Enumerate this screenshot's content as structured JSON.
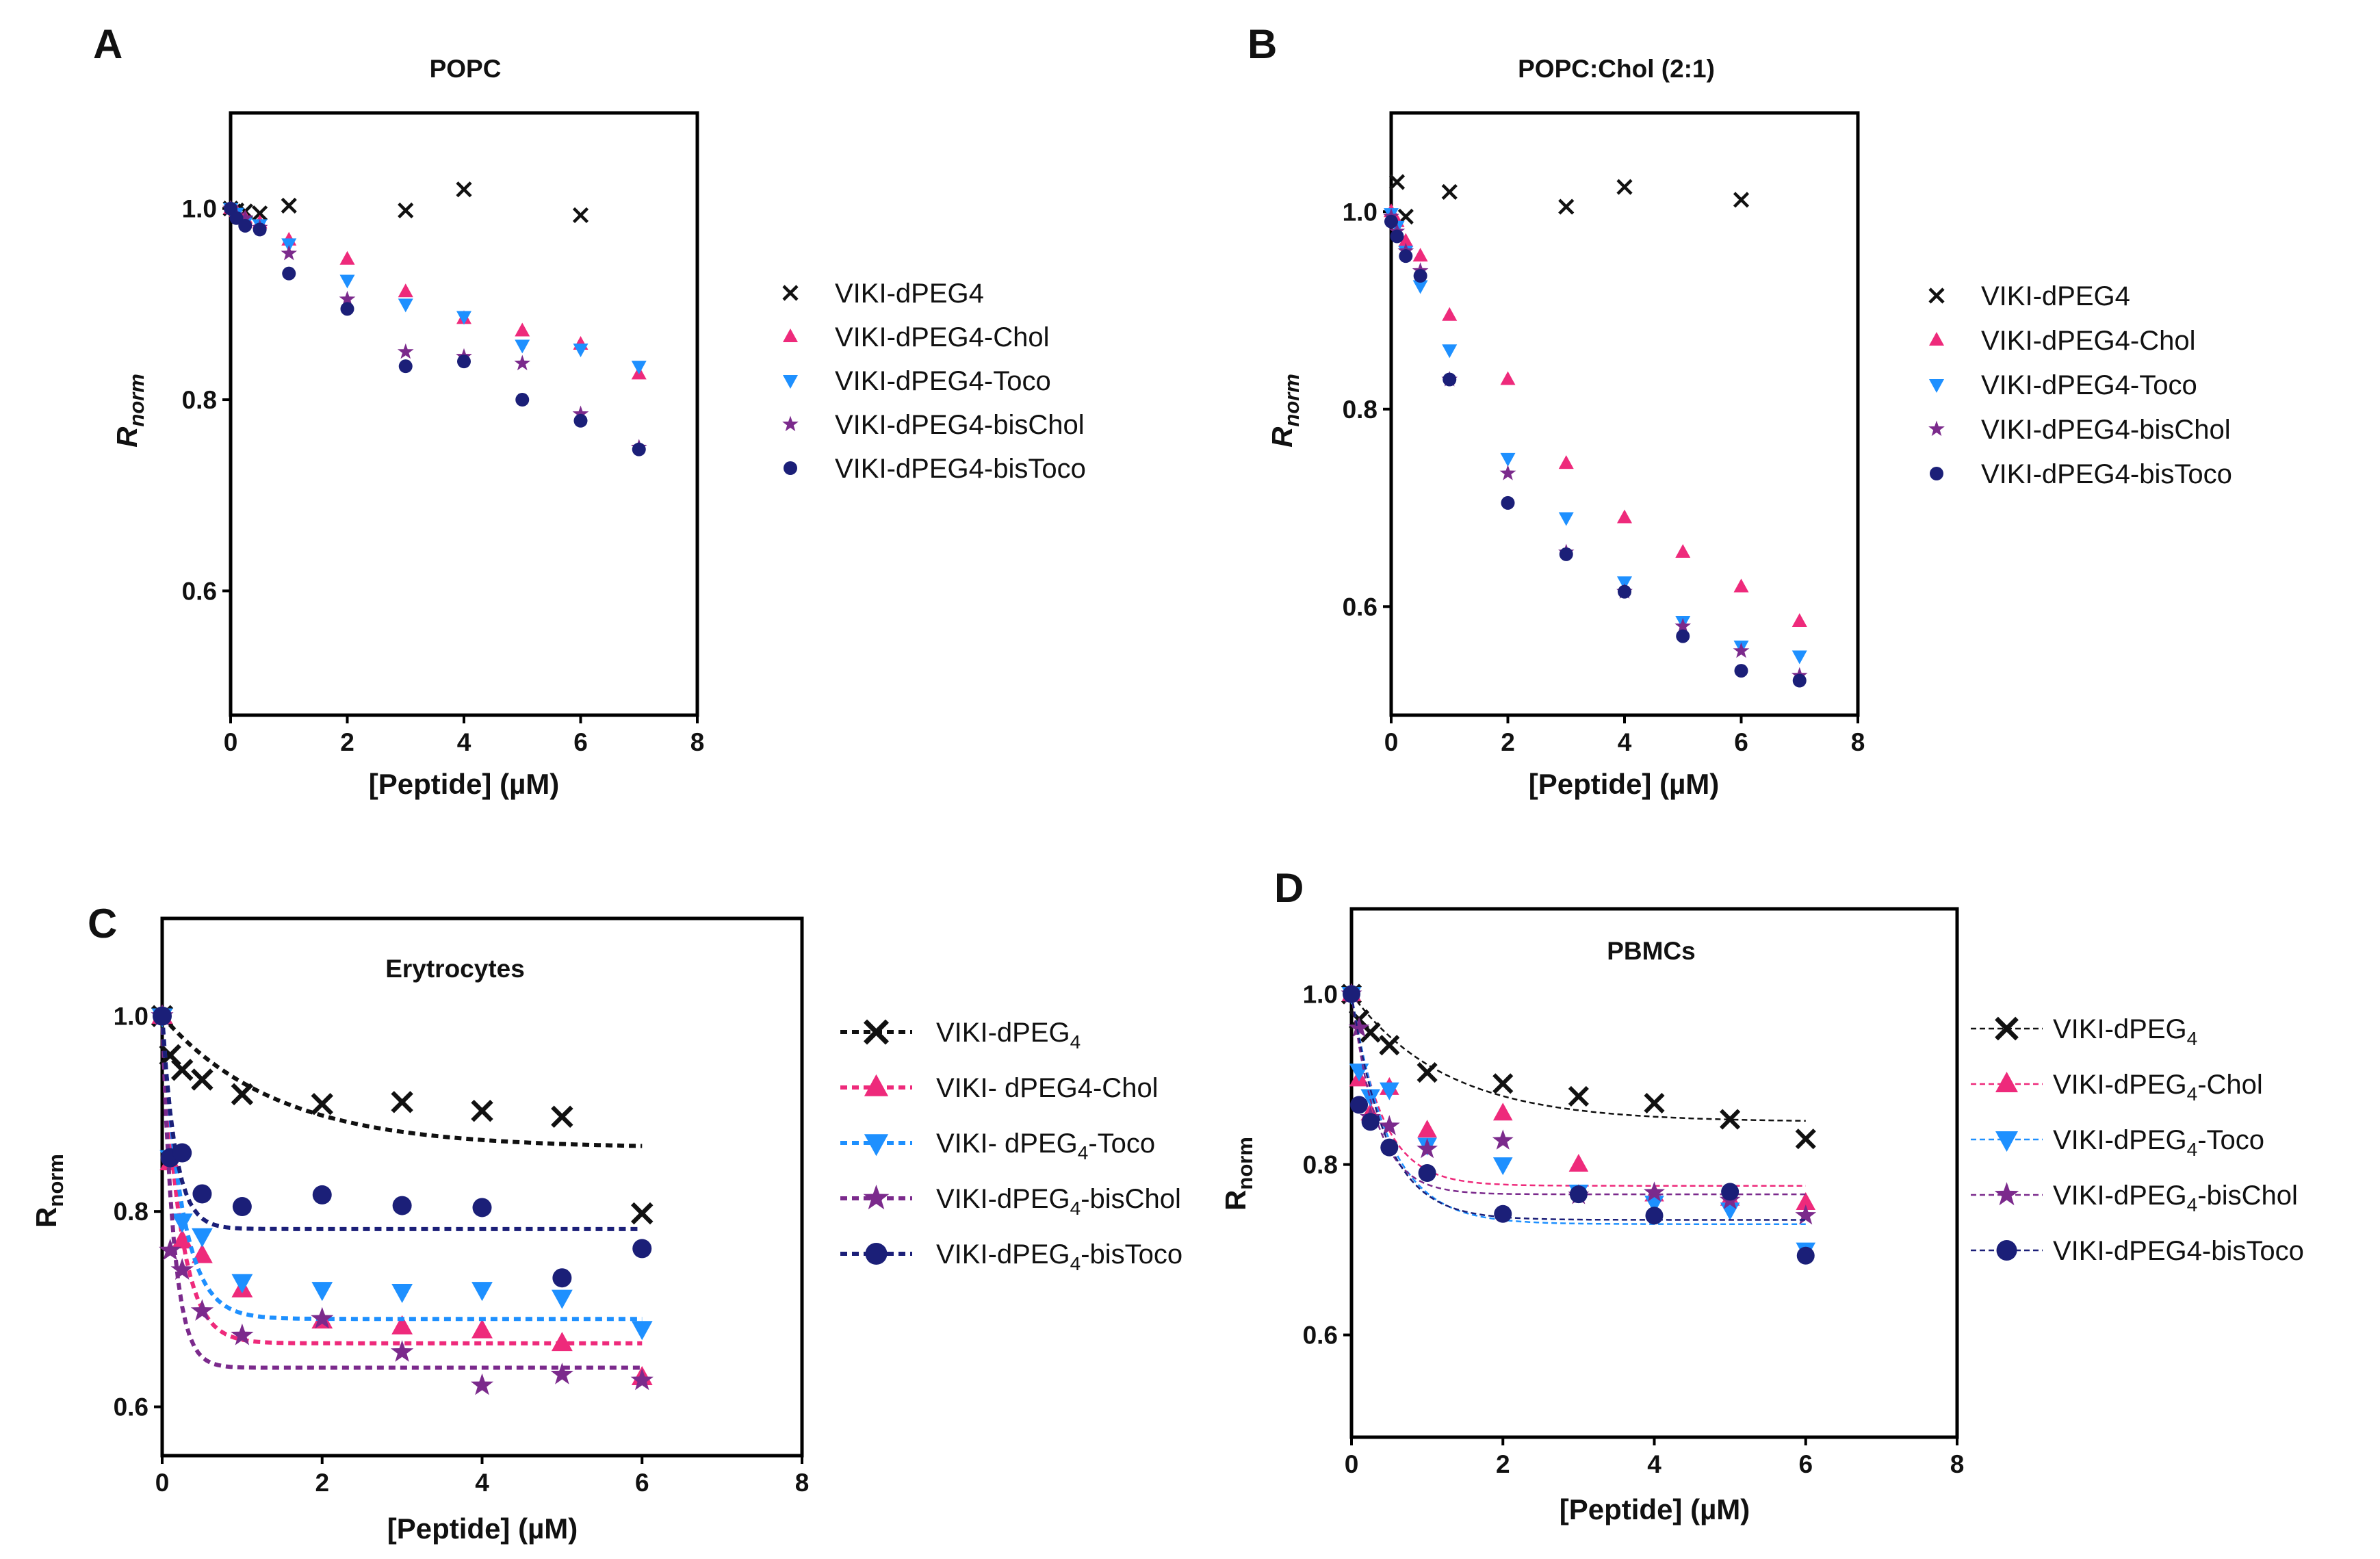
{
  "panels": [
    {
      "label": "A",
      "title": "POPC",
      "xlabel": "[Peptide] (µM)",
      "ylabel_main": "R",
      "ylabel_sub": "norm",
      "ylabel_italic": true,
      "xlim": [
        0,
        8
      ],
      "ylim": [
        0.47,
        1.1
      ],
      "xticks": [
        "0",
        "2",
        "4",
        "6",
        "8"
      ],
      "yticks": [
        "0.6",
        "0.8",
        "1.0"
      ],
      "series": [
        {
          "name": "VIKI-dPEG4",
          "marker": "x",
          "color": "#111111",
          "x": [
            0,
            0.1,
            0.25,
            0.5,
            1,
            3,
            4,
            6
          ],
          "y": [
            1.0,
            0.998,
            0.997,
            0.995,
            1.003,
            0.998,
            1.02,
            0.993
          ]
        },
        {
          "name": "VIKI-dPEG4-Chol",
          "marker": "triangle-up",
          "color": "#ee2a7b",
          "x": [
            0,
            0.1,
            0.25,
            0.5,
            1,
            2,
            3,
            4,
            5,
            6,
            7
          ],
          "y": [
            1.0,
            0.997,
            0.99,
            0.985,
            0.967,
            0.947,
            0.913,
            0.885,
            0.872,
            0.858,
            0.827
          ]
        },
        {
          "name": "VIKI-dPEG4-Toco",
          "marker": "triangle-down",
          "color": "#1e90ff",
          "x": [
            0,
            0.1,
            0.25,
            0.5,
            1,
            2,
            3,
            4,
            5,
            6,
            7
          ],
          "y": [
            1.0,
            0.995,
            0.985,
            0.983,
            0.963,
            0.925,
            0.9,
            0.887,
            0.857,
            0.853,
            0.835
          ]
        },
        {
          "name": "VIKI-dPEG4-bisChol",
          "marker": "star",
          "color": "#7b2a8c",
          "x": [
            0,
            0.1,
            0.25,
            0.5,
            1,
            2,
            3,
            4,
            5,
            6,
            7
          ],
          "y": [
            1.0,
            0.993,
            0.99,
            0.98,
            0.953,
            0.905,
            0.85,
            0.845,
            0.838,
            0.785,
            0.75
          ]
        },
        {
          "name": "VIKI-dPEG4-bisToco",
          "marker": "circle",
          "color": "#1b1f78",
          "x": [
            0,
            0.1,
            0.25,
            0.5,
            1,
            2,
            3,
            4,
            5,
            6,
            7
          ],
          "y": [
            1.0,
            0.99,
            0.982,
            0.978,
            0.932,
            0.895,
            0.835,
            0.84,
            0.8,
            0.778,
            0.748
          ]
        }
      ],
      "legend": [
        "VIKI-dPEG4",
        "VIKI-dPEG4-Chol",
        "VIKI-dPEG4-Toco",
        "VIKI-dPEG4-bisChol",
        "VIKI-dPEG4-bisToco"
      ]
    },
    {
      "label": "B",
      "title": "POPC:Chol (2:1)",
      "xlabel": "[Peptide] (µM)",
      "ylabel_main": "R",
      "ylabel_sub": "norm",
      "ylabel_italic": true,
      "xlim": [
        0,
        8
      ],
      "ylim": [
        0.49,
        1.1
      ],
      "xticks": [
        "0",
        "2",
        "4",
        "6",
        "8"
      ],
      "yticks": [
        "0.6",
        "0.8",
        "1.0"
      ],
      "series": [
        {
          "name": "VIKI-dPEG4",
          "marker": "x",
          "color": "#111111",
          "x": [
            0.1,
            0.25,
            1,
            3,
            4,
            6
          ],
          "y": [
            1.03,
            0.995,
            1.02,
            1.005,
            1.025,
            1.012
          ]
        },
        {
          "name": "VIKI-dPEG4-Chol",
          "marker": "triangle-up",
          "color": "#ee2a7b",
          "x": [
            0,
            0.1,
            0.25,
            0.5,
            1,
            2,
            3,
            4,
            5,
            6,
            7
          ],
          "y": [
            1.0,
            0.99,
            0.97,
            0.955,
            0.895,
            0.83,
            0.745,
            0.69,
            0.655,
            0.62,
            0.585
          ]
        },
        {
          "name": "VIKI-dPEG4-Toco",
          "marker": "triangle-down",
          "color": "#1e90ff",
          "x": [
            0,
            0.1,
            0.25,
            0.5,
            1,
            2,
            3,
            4,
            5,
            6,
            7
          ],
          "y": [
            0.998,
            0.985,
            0.96,
            0.925,
            0.86,
            0.75,
            0.69,
            0.625,
            0.585,
            0.56,
            0.55
          ]
        },
        {
          "name": "VIKI-dPEG4-bisChol",
          "marker": "star",
          "color": "#7b2a8c",
          "x": [
            0,
            0.1,
            0.25,
            0.5,
            1,
            2,
            3,
            4,
            5,
            6,
            7
          ],
          "y": [
            0.995,
            0.98,
            0.96,
            0.94,
            0.83,
            0.735,
            0.655,
            0.615,
            0.58,
            0.555,
            0.53
          ]
        },
        {
          "name": "VIKI-dPEG4-bisToco",
          "marker": "circle",
          "color": "#1b1f78",
          "x": [
            0,
            0.1,
            0.25,
            0.5,
            1,
            2,
            3,
            4,
            5,
            6,
            7
          ],
          "y": [
            0.99,
            0.975,
            0.955,
            0.935,
            0.83,
            0.705,
            0.653,
            0.615,
            0.57,
            0.535,
            0.525
          ]
        }
      ],
      "legend": [
        "VIKI-dPEG4",
        "VIKI-dPEG4-Chol",
        "VIKI-dPEG4-Toco",
        "VIKI-dPEG4-bisChol",
        "VIKI-dPEG4-bisToco"
      ]
    },
    {
      "label": "C",
      "title": "Erytrocytes",
      "xlabel": "[Peptide] (µM)",
      "ylabel_main": "R",
      "ylabel_sub": "norm",
      "ylabel_italic": false,
      "xlim": [
        0,
        8
      ],
      "ylim": [
        0.55,
        1.1
      ],
      "xticks": [
        "0",
        "2",
        "4",
        "6",
        "8"
      ],
      "yticks": [
        "0.6",
        "0.8",
        "1.0"
      ],
      "series": [
        {
          "name": "VIKI-dPEG4",
          "marker": "x",
          "color": "#111111",
          "x": [
            0,
            0.1,
            0.25,
            0.5,
            1,
            2,
            3,
            4,
            5,
            6
          ],
          "y": [
            1.0,
            0.96,
            0.945,
            0.935,
            0.92,
            0.91,
            0.912,
            0.903,
            0.897,
            0.798
          ],
          "fit": {
            "y0": 1.0,
            "plateau": 0.865,
            "k": 0.7
          }
        },
        {
          "name": "VIKI- dPEG4-Chol",
          "marker": "triangle-up",
          "color": "#ee2a7b",
          "x": [
            0,
            0.1,
            0.25,
            0.5,
            1,
            2,
            3,
            4,
            5,
            6
          ],
          "y": [
            1.0,
            0.85,
            0.77,
            0.755,
            0.72,
            0.688,
            0.682,
            0.678,
            0.665,
            0.63
          ],
          "fit": {
            "y0": 1.0,
            "plateau": 0.665,
            "k": 4.5
          }
        },
        {
          "name": "VIKI- dPEG4-Toco",
          "marker": "triangle-down",
          "color": "#1e90ff",
          "x": [
            0,
            0.1,
            0.25,
            0.5,
            1,
            2,
            3,
            4,
            5,
            6
          ],
          "y": [
            1.0,
            0.855,
            0.79,
            0.775,
            0.728,
            0.72,
            0.718,
            0.72,
            0.712,
            0.68
          ],
          "fit": {
            "y0": 1.0,
            "plateau": 0.69,
            "k": 4.0
          }
        },
        {
          "name": "VIKI-dPEG4-bisChol",
          "marker": "star",
          "color": "#7b2a8c",
          "x": [
            0,
            0.1,
            0.25,
            0.5,
            1,
            2,
            3,
            4,
            5,
            6
          ],
          "y": [
            1.0,
            0.76,
            0.74,
            0.698,
            0.673,
            0.69,
            0.656,
            0.622,
            0.633,
            0.627
          ],
          "fit": {
            "y0": 1.0,
            "plateau": 0.64,
            "k": 7.0
          }
        },
        {
          "name": "VIKI-dPEG4-bisToco",
          "marker": "circle",
          "color": "#1b1f78",
          "x": [
            0,
            0.1,
            0.25,
            0.5,
            1,
            2,
            3,
            4,
            5,
            6
          ],
          "y": [
            1.0,
            0.855,
            0.86,
            0.818,
            0.805,
            0.817,
            0.806,
            0.804,
            0.732,
            0.762
          ],
          "fit": {
            "y0": 1.0,
            "plateau": 0.782,
            "k": 6.0
          }
        }
      ],
      "legend": [
        {
          "main": "VIKI-dPEG",
          "sub": "4",
          "rest": ""
        },
        {
          "main": "VIKI- dPEG4-Chol",
          "sub": "",
          "rest": ""
        },
        {
          "main": "VIKI- dPEG",
          "sub": "4",
          "rest": "-Toco"
        },
        {
          "main": "VIKI-dPEG",
          "sub": "4",
          "rest": "-bisChol"
        },
        {
          "main": "VIKI-dPEG",
          "sub": "4",
          "rest": "-bisToco"
        }
      ]
    },
    {
      "label": "D",
      "title": "PBMCs",
      "xlabel": "[Peptide] (µM)",
      "ylabel_main": "R",
      "ylabel_sub": "norm",
      "ylabel_italic": false,
      "xlim": [
        0,
        8
      ],
      "ylim": [
        0.48,
        1.1
      ],
      "xticks": [
        "0",
        "2",
        "4",
        "6",
        "8"
      ],
      "yticks": [
        "0.6",
        "0.8",
        "1.0"
      ],
      "series": [
        {
          "name": "VIKI-dPEG4",
          "marker": "x",
          "color": "#111111",
          "x": [
            0,
            0.1,
            0.25,
            0.5,
            1,
            2,
            3,
            4,
            5,
            6
          ],
          "y": [
            1.0,
            0.97,
            0.955,
            0.94,
            0.908,
            0.895,
            0.88,
            0.872,
            0.853,
            0.83
          ],
          "fit": {
            "y0": 1.0,
            "plateau": 0.85,
            "k": 0.8
          }
        },
        {
          "name": "VIKI-dPEG4-Chol",
          "marker": "triangle-up",
          "color": "#ee2a7b",
          "x": [
            0,
            0.1,
            0.25,
            0.5,
            1,
            2,
            3,
            4,
            5,
            6
          ],
          "y": [
            1.0,
            0.9,
            0.86,
            0.89,
            0.84,
            0.86,
            0.8,
            0.765,
            0.76,
            0.755
          ],
          "fit": {
            "y0": 1.0,
            "plateau": 0.775,
            "k": 2.5
          }
        },
        {
          "name": "VIKI-dPEG4-Toco",
          "marker": "triangle-down",
          "color": "#1e90ff",
          "x": [
            0,
            0.1,
            0.25,
            0.5,
            1,
            2,
            3,
            4,
            5,
            6
          ],
          "y": [
            1.0,
            0.91,
            0.88,
            0.888,
            0.823,
            0.8,
            0.768,
            0.755,
            0.747,
            0.7
          ],
          "fit": {
            "y0": 1.0,
            "plateau": 0.73,
            "k": 2.0
          }
        },
        {
          "name": "VIKI-dPEG4-bisChol",
          "marker": "star",
          "color": "#7b2a8c",
          "x": [
            0,
            0.1,
            0.25,
            0.5,
            1,
            2,
            3,
            4,
            5,
            6
          ],
          "y": [
            1.0,
            0.96,
            0.855,
            0.845,
            0.818,
            0.828,
            0.764,
            0.767,
            0.758,
            0.74
          ],
          "fit": {
            "y0": 1.0,
            "plateau": 0.765,
            "k": 3.0
          }
        },
        {
          "name": "VIKI-dPEG4-bisToco",
          "marker": "circle",
          "color": "#1b1f78",
          "x": [
            0,
            0.1,
            0.25,
            0.5,
            1,
            2,
            3,
            4,
            5,
            6
          ],
          "y": [
            1.0,
            0.87,
            0.85,
            0.82,
            0.79,
            0.742,
            0.765,
            0.74,
            0.768,
            0.693
          ],
          "fit": {
            "y0": 1.0,
            "plateau": 0.735,
            "k": 2.2
          }
        }
      ],
      "legend": [
        {
          "main": "VIKI-dPEG",
          "sub": "4",
          "rest": ""
        },
        {
          "main": "VIKI-dPEG",
          "sub": "4",
          "rest": "-Chol"
        },
        {
          "main": "VIKI-dPEG",
          "sub": "4",
          "rest": "-Toco"
        },
        {
          "main": "VIKI-dPEG",
          "sub": "4",
          "rest": "-bisChol"
        },
        {
          "main": "VIKI-dPEG4-bisToco",
          "sub": "",
          "rest": ""
        }
      ]
    }
  ],
  "chart_data": [
    {
      "type": "scatter",
      "title": "POPC",
      "xlabel": "[Peptide] (µM)",
      "ylabel": "Rnorm",
      "xlim": [
        0,
        8
      ],
      "ylim": [
        0.47,
        1.1
      ]
    },
    {
      "type": "scatter",
      "title": "POPC:Chol (2:1)",
      "xlabel": "[Peptide] (µM)",
      "ylabel": "Rnorm",
      "xlim": [
        0,
        8
      ],
      "ylim": [
        0.49,
        1.1
      ]
    },
    {
      "type": "scatter",
      "title": "Erytrocytes",
      "xlabel": "[Peptide] (µM)",
      "ylabel": "Rnorm",
      "xlim": [
        0,
        8
      ],
      "ylim": [
        0.55,
        1.1
      ]
    },
    {
      "type": "scatter",
      "title": "PBMCs",
      "xlabel": "[Peptide] (µM)",
      "ylabel": "Rnorm",
      "xlim": [
        0,
        8
      ],
      "ylim": [
        0.48,
        1.1
      ]
    }
  ]
}
